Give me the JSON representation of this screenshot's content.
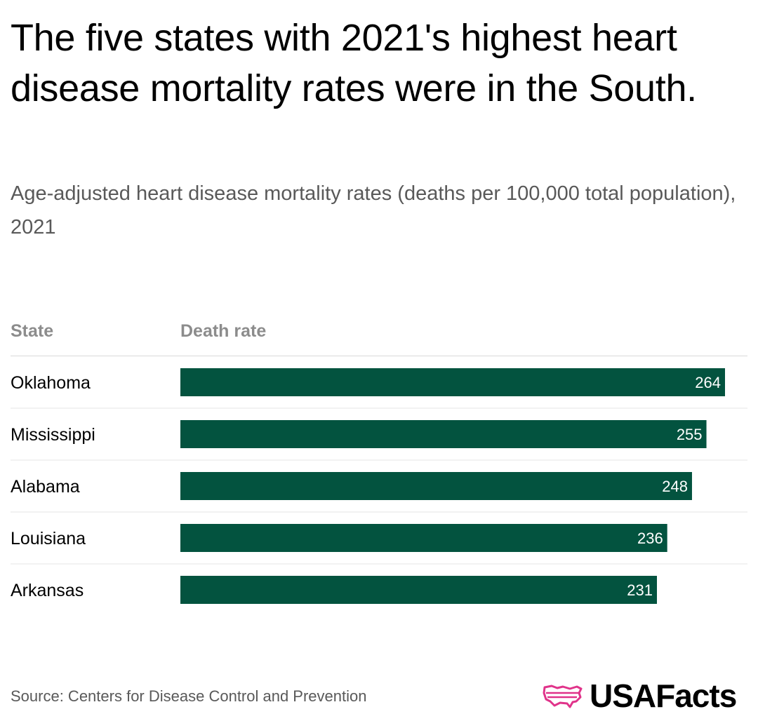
{
  "header": {
    "title": "The five states with 2021's highest heart disease mortality rates were in the South.",
    "subtitle": "Age-adjusted heart disease mortality rates (deaths per 100,000 total population), 2021"
  },
  "columns": {
    "state": "State",
    "rate": "Death rate"
  },
  "chart_data": {
    "type": "bar",
    "orientation": "horizontal",
    "title": "The five states with 2021's highest heart disease mortality rates were in the South.",
    "subtitle": "Age-adjusted heart disease mortality rates (deaths per 100,000 total population), 2021",
    "xlabel": "Death rate",
    "ylabel": "State",
    "categories": [
      "Oklahoma",
      "Mississippi",
      "Alabama",
      "Louisiana",
      "Arkansas"
    ],
    "values": [
      264,
      255,
      248,
      236,
      231
    ],
    "xlim": [
      0,
      264
    ],
    "bar_color": "#03533f",
    "label_color": "#ffffff",
    "grid": false
  },
  "footer": {
    "source": "Source: Centers for Disease Control and Prevention",
    "brand": "USAFacts",
    "brand_color": "#e0338a"
  }
}
